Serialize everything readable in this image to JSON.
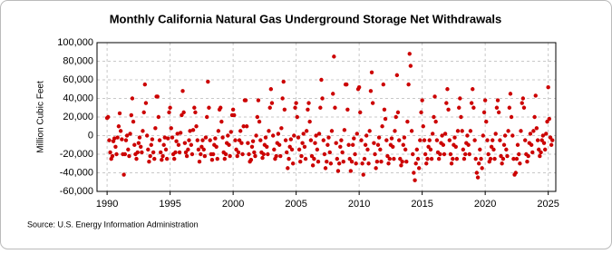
{
  "chart_data": {
    "type": "scatter",
    "title": "Monthly California Natural Gas Underground Storage Net Withdrawals",
    "y_label": "Million Cubic Feet",
    "source": "Source: U.S. Energy Information Administration",
    "color": "#cc0000",
    "grid": true,
    "xlim": [
      1989.2,
      2025.6
    ],
    "xticks": [
      1990,
      1995,
      2000,
      2005,
      2010,
      2015,
      2020,
      2025
    ],
    "ylim": [
      -60000,
      100000
    ],
    "yticks": [
      {
        "value": -60000,
        "label": "-60,000"
      },
      {
        "value": -40000,
        "label": "-40,000"
      },
      {
        "value": -20000,
        "label": "-20,000"
      },
      0,
      {
        "value": 20000,
        "label": "20,000"
      },
      {
        "value": 40000,
        "label": "40,000"
      },
      {
        "value": 60000,
        "label": "60,000"
      },
      {
        "value": 80000,
        "label": "80,000"
      },
      {
        "value": 100000,
        "label": "100,000"
      }
    ],
    "x": [
      1990,
      1990.08,
      1990.17,
      1990.25,
      1990.33,
      1990.42,
      1990.5,
      1990.58,
      1990.67,
      1990.75,
      1990.83,
      1990.92,
      1991,
      1991.08,
      1991.17,
      1991.25,
      1991.33,
      1991.42,
      1991.5,
      1991.58,
      1991.67,
      1991.75,
      1991.83,
      1991.92,
      1992,
      1992.08,
      1992.17,
      1992.25,
      1992.33,
      1992.42,
      1992.5,
      1992.58,
      1992.67,
      1992.75,
      1992.83,
      1992.92,
      1993,
      1993.08,
      1993.17,
      1993.25,
      1993.33,
      1993.42,
      1993.5,
      1993.58,
      1993.67,
      1993.75,
      1993.83,
      1993.92,
      1994,
      1994.08,
      1994.17,
      1994.25,
      1994.33,
      1994.42,
      1994.5,
      1994.58,
      1994.67,
      1994.75,
      1994.83,
      1994.92,
      1995,
      1995.08,
      1995.17,
      1995.25,
      1995.33,
      1995.42,
      1995.5,
      1995.58,
      1995.67,
      1995.75,
      1995.83,
      1995.92,
      1996,
      1996.08,
      1996.17,
      1996.25,
      1996.33,
      1996.42,
      1996.5,
      1996.58,
      1996.67,
      1996.75,
      1996.83,
      1996.92,
      1997,
      1997.08,
      1997.17,
      1997.25,
      1997.33,
      1997.42,
      1997.5,
      1997.58,
      1997.67,
      1997.75,
      1997.83,
      1997.92,
      1998,
      1998.08,
      1998.17,
      1998.25,
      1998.33,
      1998.42,
      1998.5,
      1998.58,
      1998.67,
      1998.75,
      1998.83,
      1998.92,
      1999,
      1999.08,
      1999.17,
      1999.25,
      1999.33,
      1999.42,
      1999.5,
      1999.58,
      1999.67,
      1999.75,
      1999.83,
      1999.92,
      2000,
      2000.08,
      2000.17,
      2000.25,
      2000.33,
      2000.42,
      2000.5,
      2000.58,
      2000.67,
      2000.75,
      2000.83,
      2000.92,
      2001,
      2001.08,
      2001.17,
      2001.25,
      2001.33,
      2001.42,
      2001.5,
      2001.58,
      2001.67,
      2001.75,
      2001.83,
      2001.92,
      2002,
      2002.08,
      2002.17,
      2002.25,
      2002.33,
      2002.42,
      2002.5,
      2002.58,
      2002.67,
      2002.75,
      2002.83,
      2002.92,
      2003,
      2003.08,
      2003.17,
      2003.25,
      2003.33,
      2003.42,
      2003.5,
      2003.58,
      2003.67,
      2003.75,
      2003.83,
      2003.92,
      2004,
      2004.08,
      2004.17,
      2004.25,
      2004.33,
      2004.42,
      2004.5,
      2004.58,
      2004.67,
      2004.75,
      2004.83,
      2004.92,
      2005,
      2005.08,
      2005.17,
      2005.25,
      2005.33,
      2005.42,
      2005.5,
      2005.58,
      2005.67,
      2005.75,
      2005.83,
      2005.92,
      2006,
      2006.08,
      2006.17,
      2006.25,
      2006.33,
      2006.42,
      2006.5,
      2006.58,
      2006.67,
      2006.75,
      2006.83,
      2006.92,
      2007,
      2007.08,
      2007.17,
      2007.25,
      2007.33,
      2007.42,
      2007.5,
      2007.58,
      2007.67,
      2007.75,
      2007.83,
      2007.92,
      2008,
      2008.08,
      2008.17,
      2008.25,
      2008.33,
      2008.42,
      2008.5,
      2008.58,
      2008.67,
      2008.75,
      2008.83,
      2008.92,
      2009,
      2009.08,
      2009.17,
      2009.25,
      2009.33,
      2009.42,
      2009.5,
      2009.58,
      2009.67,
      2009.75,
      2009.83,
      2009.92,
      2010,
      2010.08,
      2010.17,
      2010.25,
      2010.33,
      2010.42,
      2010.5,
      2010.58,
      2010.67,
      2010.75,
      2010.83,
      2010.92,
      2011,
      2011.08,
      2011.17,
      2011.25,
      2011.33,
      2011.42,
      2011.5,
      2011.58,
      2011.67,
      2011.75,
      2011.83,
      2011.92,
      2012,
      2012.08,
      2012.17,
      2012.25,
      2012.33,
      2012.42,
      2012.5,
      2012.58,
      2012.67,
      2012.75,
      2012.83,
      2012.92,
      2013,
      2013.08,
      2013.17,
      2013.25,
      2013.33,
      2013.42,
      2013.5,
      2013.58,
      2013.67,
      2013.75,
      2013.83,
      2013.92,
      2014,
      2014.08,
      2014.17,
      2014.25,
      2014.33,
      2014.42,
      2014.5,
      2014.58,
      2014.67,
      2014.75,
      2014.83,
      2014.92,
      2015,
      2015.08,
      2015.17,
      2015.25,
      2015.33,
      2015.42,
      2015.5,
      2015.58,
      2015.67,
      2015.75,
      2015.83,
      2015.92,
      2016,
      2016.08,
      2016.17,
      2016.25,
      2016.33,
      2016.42,
      2016.5,
      2016.58,
      2016.67,
      2016.75,
      2016.83,
      2016.92,
      2017,
      2017.08,
      2017.17,
      2017.25,
      2017.33,
      2017.42,
      2017.5,
      2017.58,
      2017.67,
      2017.75,
      2017.83,
      2017.92,
      2018,
      2018.08,
      2018.17,
      2018.25,
      2018.33,
      2018.42,
      2018.5,
      2018.58,
      2018.67,
      2018.75,
      2018.83,
      2018.92,
      2019,
      2019.08,
      2019.17,
      2019.25,
      2019.33,
      2019.42,
      2019.5,
      2019.58,
      2019.67,
      2019.75,
      2019.83,
      2019.92,
      2020,
      2020.08,
      2020.17,
      2020.25,
      2020.33,
      2020.42,
      2020.5,
      2020.58,
      2020.67,
      2020.75,
      2020.83,
      2020.92,
      2021,
      2021.08,
      2021.17,
      2021.25,
      2021.33,
      2021.42,
      2021.5,
      2021.58,
      2021.67,
      2021.75,
      2021.83,
      2021.92,
      2022,
      2022.08,
      2022.17,
      2022.25,
      2022.33,
      2022.42,
      2022.5,
      2022.58,
      2022.67,
      2022.75,
      2022.83,
      2022.92,
      2023,
      2023.08,
      2023.17,
      2023.25,
      2023.33,
      2023.42,
      2023.5,
      2023.58,
      2023.67,
      2023.75,
      2023.83,
      2023.92,
      2024,
      2024.08,
      2024.17,
      2024.25,
      2024.33,
      2024.42,
      2024.5,
      2024.58,
      2024.67,
      2024.75,
      2024.83,
      2024.92,
      2025,
      2025.08,
      2025.17,
      2025.25,
      2025.33
    ],
    "values": [
      19000,
      20000,
      -5000,
      -18000,
      -25000,
      -22000,
      -6000,
      -3000,
      -12000,
      -20000,
      -2000,
      10000,
      24000,
      5000,
      -4000,
      -20000,
      -42000,
      -20000,
      -5000,
      0,
      -15000,
      -22000,
      2000,
      22000,
      40000,
      15000,
      -10000,
      -20000,
      -25000,
      -18000,
      -8000,
      -2000,
      -12000,
      -18000,
      5000,
      25000,
      55000,
      35000,
      0,
      -15000,
      -28000,
      -22000,
      -10000,
      -4000,
      -18000,
      -25000,
      8000,
      42000,
      42000,
      20000,
      -5000,
      -18000,
      -26000,
      -22000,
      -10000,
      -2000,
      -15000,
      -25000,
      -3000,
      25000,
      30000,
      8000,
      -2000,
      -20000,
      -25000,
      -18000,
      -6000,
      2000,
      -10000,
      -18000,
      3000,
      22000,
      48000,
      25000,
      -8000,
      -18000,
      -22000,
      -15000,
      -5000,
      5000,
      -10000,
      -20000,
      6000,
      30000,
      25000,
      10000,
      -5000,
      -15000,
      -28000,
      -20000,
      -12000,
      -5000,
      -15000,
      -22000,
      -2000,
      20000,
      58000,
      30000,
      -5000,
      -20000,
      -26000,
      -20000,
      -10000,
      -3000,
      -12000,
      -25000,
      5000,
      28000,
      30000,
      15000,
      -2000,
      -18000,
      -25000,
      -20000,
      -8000,
      0,
      -10000,
      -22000,
      4000,
      22000,
      28000,
      22000,
      -5000,
      -15000,
      -22000,
      -18000,
      -5000,
      5000,
      -8000,
      -20000,
      10000,
      38000,
      38000,
      10000,
      -8000,
      -20000,
      -28000,
      -26000,
      -12000,
      -6000,
      -18000,
      -22000,
      0,
      20000,
      38000,
      15000,
      -5000,
      -18000,
      -24000,
      -20000,
      -10000,
      -2000,
      -12000,
      -20000,
      5000,
      30000,
      50000,
      35000,
      0,
      -15000,
      -25000,
      -22000,
      -8000,
      2000,
      -10000,
      -22000,
      8000,
      40000,
      58000,
      28000,
      -5000,
      -18000,
      -35000,
      -25000,
      -12000,
      -4000,
      -15000,
      -30000,
      0,
      30000,
      35000,
      20000,
      -2000,
      -15000,
      -28000,
      -22000,
      -8000,
      2000,
      -12000,
      -25000,
      5000,
      28000,
      35000,
      15000,
      -5000,
      -22000,
      -32000,
      -25000,
      -8000,
      0,
      -15000,
      -28000,
      2000,
      30000,
      60000,
      40000,
      -5000,
      -20000,
      -35000,
      -28000,
      -10000,
      -2000,
      -18000,
      -30000,
      5000,
      45000,
      85000,
      30000,
      -8000,
      -25000,
      -38000,
      -30000,
      -12000,
      -5000,
      -18000,
      -28000,
      6000,
      55000,
      55000,
      28000,
      -10000,
      -25000,
      -38000,
      -28000,
      -10000,
      -3000,
      -20000,
      -30000,
      2000,
      50000,
      52000,
      25000,
      -5000,
      -30000,
      -42000,
      -25000,
      -10000,
      0,
      -15000,
      -30000,
      5000,
      48000,
      68000,
      35000,
      -8000,
      -20000,
      -35000,
      -28000,
      -10000,
      -2000,
      -15000,
      -28000,
      10000,
      55000,
      28000,
      18000,
      -5000,
      -22000,
      -30000,
      -25000,
      -10000,
      -3000,
      -12000,
      -25000,
      5000,
      20000,
      65000,
      25000,
      -5000,
      -25000,
      -32000,
      -28000,
      -10000,
      -2000,
      -15000,
      -28000,
      15000,
      55000,
      88000,
      75000,
      5000,
      -20000,
      -40000,
      -48000,
      -30000,
      -15000,
      -25000,
      -35000,
      -5000,
      25000,
      38000,
      10000,
      -5000,
      -20000,
      -30000,
      -25000,
      -12000,
      -5000,
      -15000,
      -25000,
      2000,
      20000,
      42000,
      15000,
      -5000,
      -18000,
      -25000,
      -20000,
      -8000,
      0,
      -10000,
      -20000,
      2000,
      35000,
      50000,
      28000,
      -5000,
      -20000,
      -30000,
      -25000,
      -10000,
      -2000,
      -12000,
      -25000,
      5000,
      30000,
      40000,
      20000,
      5000,
      -15000,
      -25000,
      -20000,
      -8000,
      0,
      -10000,
      -20000,
      5000,
      35000,
      50000,
      30000,
      -5000,
      -25000,
      -40000,
      -45000,
      -30000,
      -15000,
      -25000,
      -35000,
      0,
      25000,
      38000,
      15000,
      -5000,
      -20000,
      -28000,
      -25000,
      -12000,
      -5000,
      -15000,
      -25000,
      2000,
      30000,
      38000,
      25000,
      -5000,
      -22000,
      -30000,
      -25000,
      -10000,
      0,
      -15000,
      -22000,
      5000,
      30000,
      45000,
      20000,
      0,
      -25000,
      -42000,
      -40000,
      -25000,
      -10000,
      -20000,
      -30000,
      5000,
      35000,
      40000,
      30000,
      -5000,
      -20000,
      -28000,
      -22000,
      -8000,
      2000,
      -10000,
      -18000,
      5000,
      20000,
      43000,
      8000,
      -5000,
      -15000,
      -22000,
      -18000,
      -5000,
      0,
      -8000,
      -15000,
      2000,
      15000,
      52000,
      18000,
      -2000,
      -10000,
      -5000
    ]
  }
}
